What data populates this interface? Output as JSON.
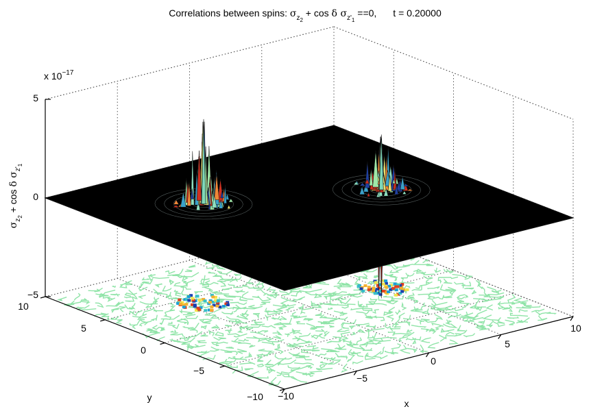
{
  "chart_data": {
    "type": "surface",
    "title": {
      "prefix": "Correlations between spins: ",
      "sigma": "σ",
      "sub_z": "z",
      "sub_2": "2",
      "plus_cos": " + cos ",
      "delta": "δ",
      "sub_zprime": "z'",
      "sub_1": "1",
      "suffix": " ==0,",
      "time": "t = 0.20000"
    },
    "zlabel": {
      "sigma": "σ",
      "sub_z": "z",
      "sub_2": "2",
      "plus_cos": " + cos ",
      "delta": "δ",
      "sub_zprime": "z'",
      "sub_1": "1"
    },
    "xlabel": "x",
    "ylabel": "y",
    "z_exponent": "x 10",
    "z_exponent_power": "−17",
    "x_ticks": [
      "−10",
      "−5",
      "0",
      "5",
      "10"
    ],
    "y_ticks": [
      "−10",
      "−5",
      "0",
      "5",
      "10"
    ],
    "z_ticks": [
      "−5",
      "0",
      "5"
    ],
    "xlim": [
      -10,
      10
    ],
    "ylim": [
      -10,
      10
    ],
    "zlim": [
      -5,
      5
    ],
    "grid": true,
    "surface_base": 0,
    "surface_color": "#000000",
    "contour_color": "#90e4a8",
    "peaks": [
      {
        "x": -4,
        "y": 4,
        "z_max": 4.3,
        "z_min": 0
      },
      {
        "x": 5,
        "y": 0,
        "z_max": 2.8,
        "z_min": -5.5
      }
    ]
  }
}
